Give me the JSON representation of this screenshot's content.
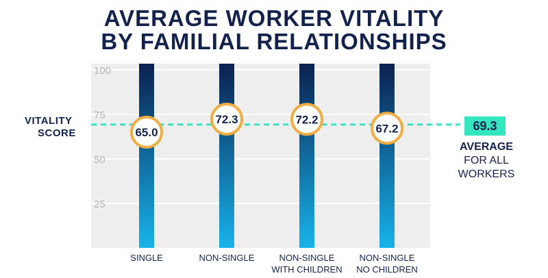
{
  "title_line1": "AVERAGE WORKER VITALITY",
  "title_line2": "BY FAMILIAL RELATIONSHIPS",
  "side_label_line1": "VITALITY",
  "side_label_line2": "SCORE",
  "average_label_line1": "AVERAGE",
  "average_label_line2": "FOR ALL",
  "average_label_line3": "WORKERS",
  "colors": {
    "navy": "#13214d",
    "bar_top": "#0b2150",
    "bar_bottom": "#17b3ea",
    "ring": "#f0ad42",
    "average_line": "#33e6c0",
    "grid_bg": "#eeeeee",
    "tick_text": "#b5b5b5"
  },
  "chart_data": {
    "type": "bar",
    "title": "AVERAGE WORKER VITALITY BY FAMILIAL RELATIONSHIPS",
    "ylabel": "VITALITY SCORE",
    "ylim": [
      0,
      100
    ],
    "yticks": [
      25,
      50,
      75,
      100
    ],
    "categories": [
      {
        "line1": "SINGLE",
        "line2": ""
      },
      {
        "line1": "NON-SINGLE",
        "line2": ""
      },
      {
        "line1": "NON-SINGLE",
        "line2": "WITH CHILDREN"
      },
      {
        "line1": "NON-SINGLE",
        "line2": "NO CHILDREN"
      }
    ],
    "values": [
      65.0,
      72.3,
      72.2,
      67.2
    ],
    "value_labels": [
      "65.0",
      "72.3",
      "72.2",
      "67.2"
    ],
    "average": {
      "value": 69.3,
      "label": "69.3"
    }
  }
}
